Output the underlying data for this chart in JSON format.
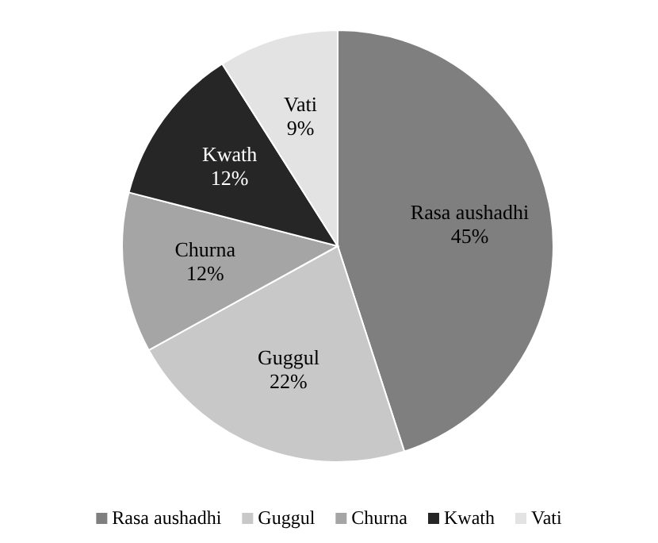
{
  "chart_data": {
    "type": "pie",
    "categories": [
      "Rasa aushadhi",
      "Guggul",
      "Churna",
      "Kwath",
      "Vati"
    ],
    "values": [
      45,
      22,
      12,
      12,
      9
    ],
    "colors": [
      "#7f7f7f",
      "#c8c8c8",
      "#a5a5a5",
      "#262626",
      "#e3e3e3"
    ],
    "value_labels": [
      "45%",
      "22%",
      "12%",
      "12%",
      "9%"
    ],
    "legend": "bottom"
  }
}
